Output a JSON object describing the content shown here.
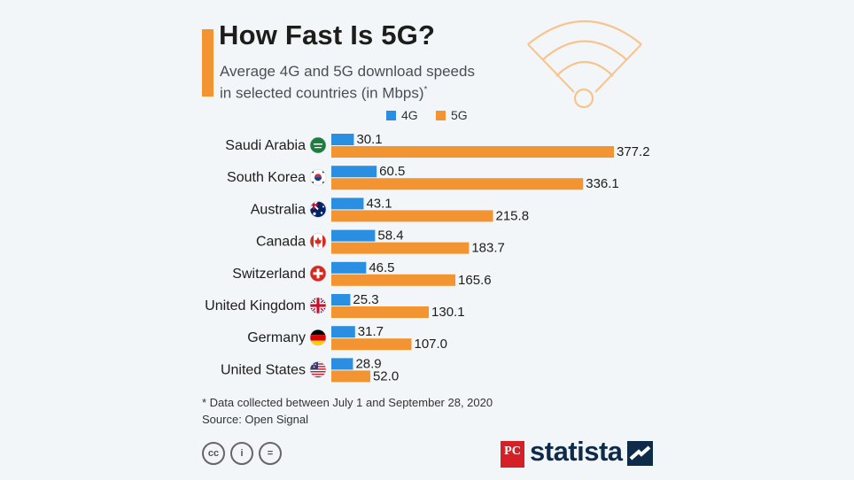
{
  "header": {
    "title": "How Fast Is 5G?",
    "subtitle_line1": "Average 4G and 5G download speeds",
    "subtitle_line2": "in selected countries (in Mbps)",
    "subtitle_marker": "*"
  },
  "legend": [
    {
      "label": "4G",
      "color": "#2a8fe0"
    },
    {
      "label": "5G",
      "color": "#f29432"
    }
  ],
  "chart_data": {
    "type": "bar",
    "orientation": "horizontal",
    "categories": [
      "Saudi Arabia",
      "South Korea",
      "Australia",
      "Canada",
      "Switzerland",
      "United Kingdom",
      "Germany",
      "United States"
    ],
    "series": [
      {
        "name": "4G",
        "color": "#2a8fe0",
        "values": [
          30.1,
          60.5,
          43.1,
          58.4,
          46.5,
          25.3,
          31.7,
          28.9
        ]
      },
      {
        "name": "5G",
        "color": "#f29432",
        "values": [
          377.2,
          336.1,
          215.8,
          183.7,
          165.6,
          130.1,
          107.0,
          52.0
        ]
      }
    ],
    "value_labels": {
      "4G": [
        "30.1",
        "60.5",
        "43.1",
        "58.4",
        "46.5",
        "25.3",
        "31.7",
        "28.9"
      ],
      "5G": [
        "377.2",
        "336.1",
        "215.8",
        "183.7",
        "165.6",
        "130.1",
        "107.0",
        "52.0"
      ]
    },
    "flags": [
      "saudi-arabia-flag-icon",
      "south-korea-flag-icon",
      "australia-flag-icon",
      "canada-flag-icon",
      "switzerland-flag-icon",
      "united-kingdom-flag-icon",
      "germany-flag-icon",
      "united-states-flag-icon"
    ],
    "xlim": [
      0,
      377.2
    ],
    "grid": false,
    "legend_position": "top"
  },
  "footer": {
    "footnote": "* Data collected between July 1 and September 28, 2020",
    "source": "Source: Open Signal",
    "license_icons": [
      "creative-commons-icon",
      "attribution-icon",
      "no-derivatives-icon"
    ],
    "cc_glyphs": [
      "cc",
      "i",
      "="
    ],
    "pc_logo": "PC",
    "brand": "statista"
  }
}
